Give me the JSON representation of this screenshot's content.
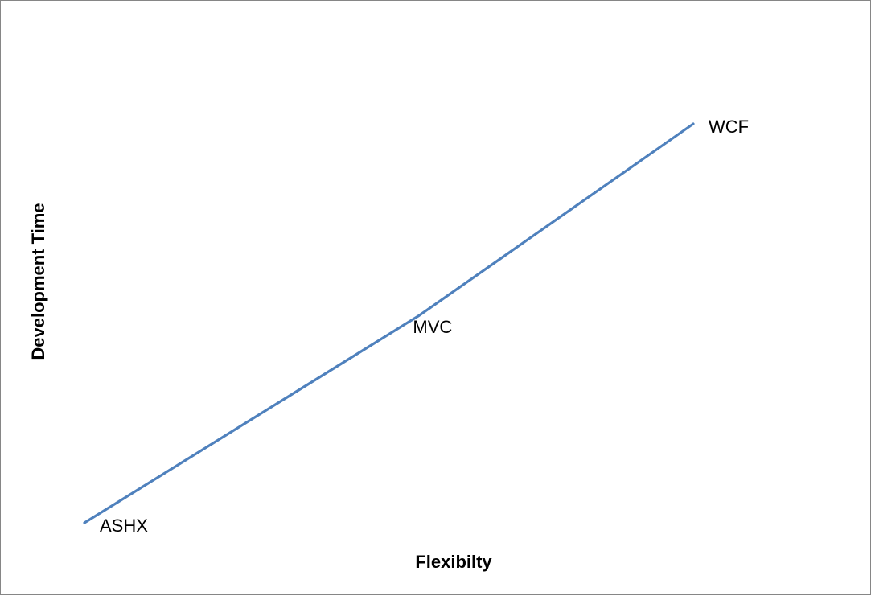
{
  "chart_data": {
    "type": "line",
    "title": "",
    "xlabel": "Flexibilty",
    "ylabel": "Development Time",
    "grid": false,
    "legend": "none",
    "axes_visible": false,
    "series": [
      {
        "color": "#4F81BD",
        "points": [
          {
            "label": "ASHX",
            "x": 0,
            "y": 0
          },
          {
            "label": "MVC",
            "x": 0.55,
            "y": 0.52
          },
          {
            "label": "WCF",
            "x": 1,
            "y": 1
          }
        ]
      }
    ],
    "xlim": [
      0,
      1
    ],
    "ylim": [
      0,
      1
    ]
  }
}
